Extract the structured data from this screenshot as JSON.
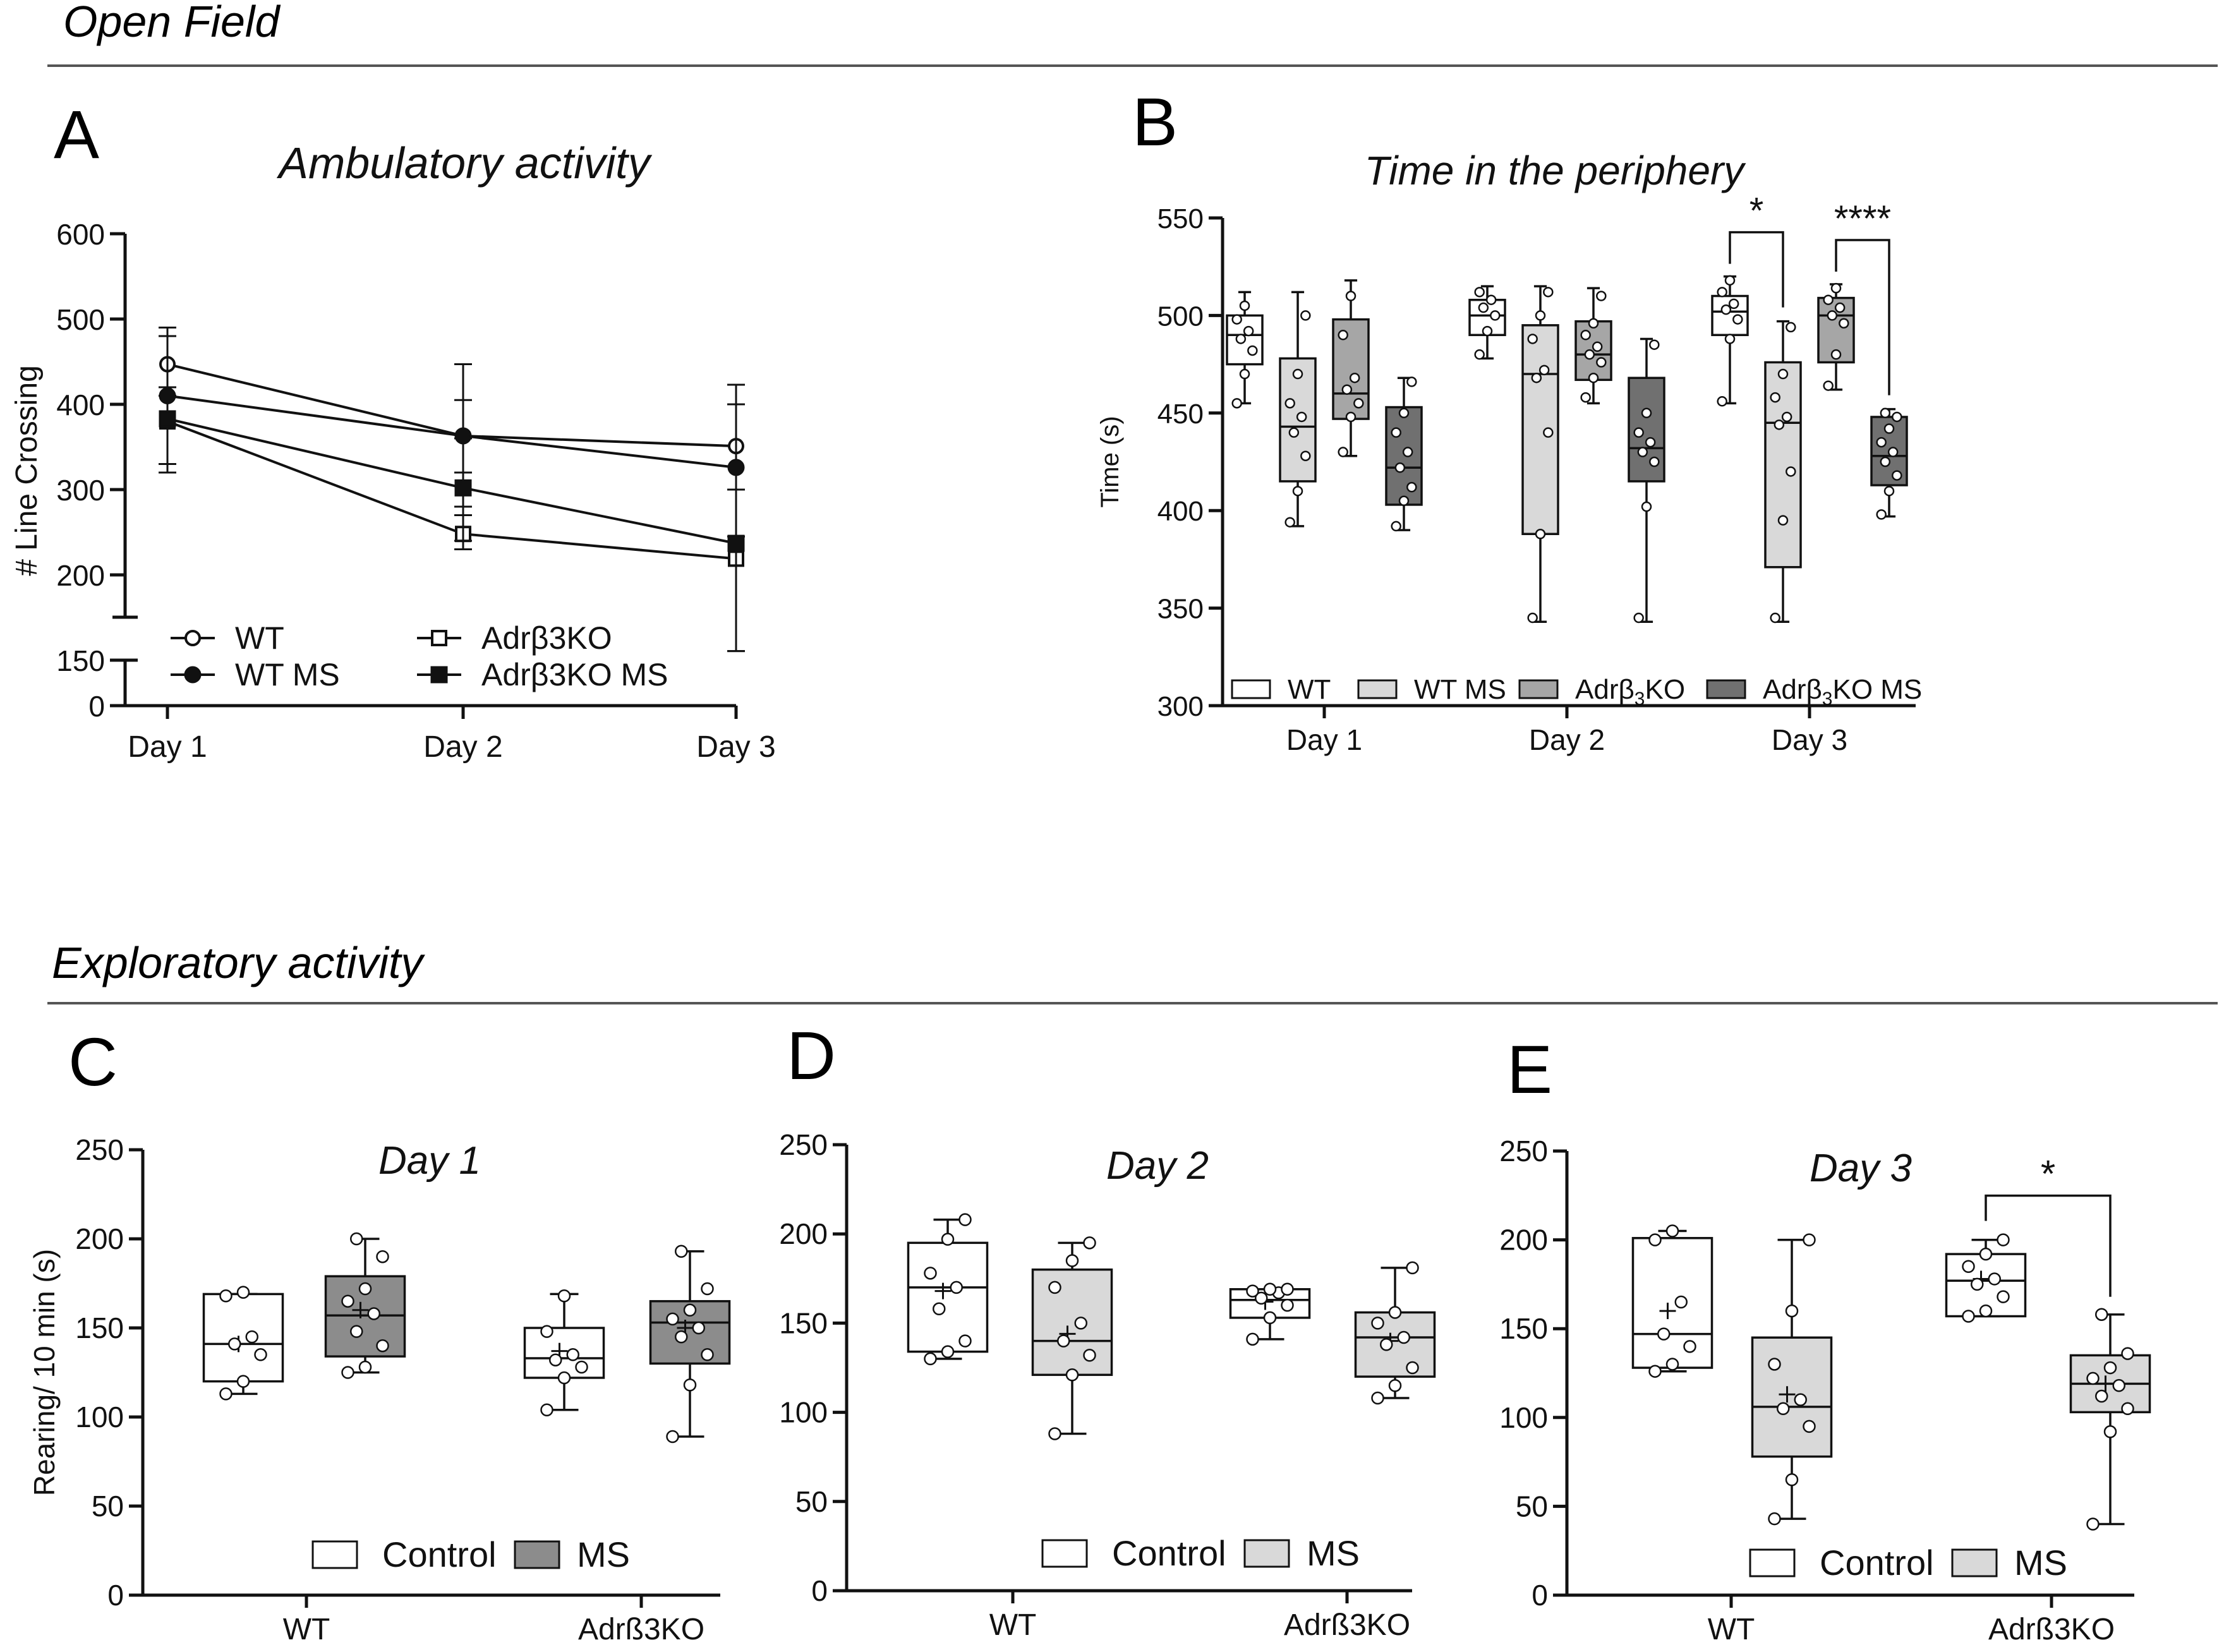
{
  "sections": {
    "open_field": "Open Field",
    "exploratory": "Exploratory activity"
  },
  "panel_letters": [
    "A",
    "B",
    "C",
    "D",
    "E"
  ],
  "colors": {
    "wt": "#ffffff",
    "wt_ms": "#d9d9d9",
    "ko": "#a6a6a6",
    "ko_ms": "#707070",
    "control": "#ffffff",
    "ms_c": "#8c8c8c",
    "ms_light": "#d9d9d9"
  },
  "chart_data": [
    {
      "id": "A",
      "type": "line",
      "title": "Ambulatory activity",
      "ylabel": "# Line Crossing",
      "xlabel": "",
      "categories": [
        "Day 1",
        "Day 2",
        "Day 3"
      ],
      "ylim": [
        0,
        600
      ],
      "yticks": [
        "600",
        "500",
        "400",
        "300",
        "200",
        "150",
        "0"
      ],
      "axis_break": [
        150,
        200
      ],
      "series": [
        {
          "name": "WT",
          "marker": "open-circle",
          "values": [
            447,
            363,
            351
          ],
          "err_hi": [
            490,
            405,
            423
          ],
          "err_lo": [
            410,
            320,
            300
          ]
        },
        {
          "name": "WT MS",
          "marker": "filled-circle",
          "values": [
            410,
            363,
            326
          ],
          "err_hi": [
            490,
            447,
            400
          ],
          "err_lo": [
            330,
            280,
            245
          ]
        },
        {
          "name": "Adrβ3KO",
          "marker": "open-square",
          "values": [
            380,
            248,
            219
          ],
          "err_hi": [
            420,
            270,
            300
          ],
          "err_lo": [
            320,
            230,
            180
          ]
        },
        {
          "name": "Adrβ3KO MS",
          "marker": "filled-square",
          "values": [
            383,
            302,
            237
          ],
          "err_hi": [
            480,
            360,
            300
          ],
          "err_lo": [
            330,
            240,
            180
          ]
        }
      ]
    },
    {
      "id": "B",
      "type": "box",
      "title": "Time in the periphery",
      "ylabel": "Time (s)",
      "categories": [
        "Day 1",
        "Day 2",
        "Day 3"
      ],
      "ylim": [
        300,
        550
      ],
      "yticks": [
        "550",
        "500",
        "450",
        "400",
        "350",
        "300"
      ],
      "series_names": [
        "WT",
        "WT MS",
        "Adrβ3KO",
        "Adrβ3KO MS"
      ],
      "legend": [
        {
          "name": "WT",
          "base": "WT",
          "sub": "",
          "tail": ""
        },
        {
          "name": "WT MS",
          "base": "WT MS",
          "sub": "",
          "tail": ""
        },
        {
          "name": "Adrβ3KO",
          "base": "Adrβ",
          "sub": "3",
          "tail": "KO"
        },
        {
          "name": "Adrβ3KO MS",
          "base": "Adrβ",
          "sub": "3",
          "tail": "KO MS"
        }
      ],
      "groups": [
        [
          {
            "min": 455,
            "q1": 475,
            "med": 490,
            "q3": 500,
            "max": 512,
            "points": [
              455,
              470,
              482,
              488,
              492,
              498,
              505
            ]
          },
          {
            "min": 392,
            "q1": 415,
            "med": 443,
            "q3": 478,
            "max": 512,
            "points": [
              394,
              410,
              428,
              440,
              448,
              455,
              470,
              500
            ]
          },
          {
            "min": 428,
            "q1": 447,
            "med": 460,
            "q3": 498,
            "max": 518,
            "points": [
              430,
              448,
              455,
              462,
              468,
              490,
              510
            ]
          },
          {
            "min": 390,
            "q1": 403,
            "med": 422,
            "q3": 453,
            "max": 468,
            "points": [
              392,
              405,
              412,
              422,
              430,
              440,
              450,
              466
            ]
          }
        ],
        [
          {
            "min": 478,
            "q1": 490,
            "med": 500,
            "q3": 508,
            "max": 515,
            "points": [
              480,
              492,
              500,
              504,
              508,
              512
            ]
          },
          {
            "min": 343,
            "q1": 388,
            "med": 470,
            "q3": 495,
            "max": 515,
            "points": [
              345,
              388,
              440,
              468,
              472,
              488,
              500,
              512
            ]
          },
          {
            "min": 455,
            "q1": 467,
            "med": 480,
            "q3": 497,
            "max": 514,
            "points": [
              458,
              468,
              476,
              480,
              484,
              490,
              496,
              510
            ]
          },
          {
            "min": 343,
            "q1": 415,
            "med": 432,
            "q3": 468,
            "max": 488,
            "points": [
              345,
              402,
              425,
              430,
              435,
              440,
              450,
              485
            ]
          }
        ],
        [
          {
            "min": 455,
            "q1": 490,
            "med": 502,
            "q3": 510,
            "max": 520,
            "points": [
              456,
              488,
              498,
              503,
              506,
              512,
              518
            ]
          },
          {
            "min": 343,
            "q1": 371,
            "med": 445,
            "q3": 476,
            "max": 497,
            "points": [
              345,
              395,
              420,
              444,
              448,
              458,
              470,
              494
            ]
          },
          {
            "min": 462,
            "q1": 476,
            "med": 500,
            "q3": 509,
            "max": 516,
            "points": [
              464,
              480,
              496,
              500,
              504,
              508,
              514
            ]
          },
          {
            "min": 397,
            "q1": 413,
            "med": 428,
            "q3": 448,
            "max": 452,
            "points": [
              398,
              410,
              418,
              425,
              430,
              435,
              442,
              448,
              450
            ]
          }
        ]
      ],
      "significance": [
        {
          "group": 2,
          "from": 0,
          "to": 1,
          "label": "*"
        },
        {
          "group": 2,
          "from": 2,
          "to": 3,
          "label": "****"
        }
      ]
    },
    {
      "id": "C",
      "type": "box",
      "title": "Day 1",
      "ylabel": "Rearing/ 10 min (s)",
      "categories": [
        "WT",
        "Adrß3KO"
      ],
      "ylim": [
        0,
        250
      ],
      "yticks": [
        "250",
        "200",
        "150",
        "100",
        "50",
        "0"
      ],
      "legend": [
        "Control",
        "MS"
      ],
      "groups": [
        [
          {
            "min": 113,
            "q1": 120,
            "med": 141,
            "q3": 169,
            "max": 169,
            "mean": 141,
            "points": [
              113,
              120,
              135,
              141,
              145,
              168,
              170
            ]
          },
          {
            "min": 125,
            "q1": 134,
            "med": 157,
            "q3": 179,
            "max": 200,
            "mean": 160,
            "points": [
              125,
              128,
              140,
              148,
              158,
              165,
              172,
              190,
              200
            ]
          }
        ],
        [
          {
            "min": 104,
            "q1": 122,
            "med": 133,
            "q3": 150,
            "max": 169,
            "mean": 137,
            "points": [
              104,
              122,
              128,
              132,
              135,
              148,
              168
            ]
          },
          {
            "min": 89,
            "q1": 130,
            "med": 153,
            "q3": 165,
            "max": 193,
            "mean": 150,
            "points": [
              89,
              118,
              135,
              145,
              150,
              155,
              160,
              172,
              193
            ]
          }
        ]
      ],
      "significance": []
    },
    {
      "id": "D",
      "type": "box",
      "title": "Day 2",
      "ylabel": "",
      "categories": [
        "WT",
        "Adrß3KO"
      ],
      "ylim": [
        0,
        250
      ],
      "yticks": [
        "250",
        "200",
        "150",
        "100",
        "50",
        "0"
      ],
      "legend": [
        "Control",
        "MS"
      ],
      "groups": [
        [
          {
            "min": 130,
            "q1": 134,
            "med": 170,
            "q3": 195,
            "max": 208,
            "mean": 168,
            "points": [
              130,
              134,
              140,
              158,
              170,
              178,
              197,
              208
            ]
          },
          {
            "min": 88,
            "q1": 121,
            "med": 140,
            "q3": 180,
            "max": 195,
            "mean": 144,
            "points": [
              88,
              121,
              132,
              140,
              150,
              170,
              185,
              195
            ]
          }
        ],
        [
          {
            "min": 141,
            "q1": 153,
            "med": 163,
            "q3": 169,
            "max": 169,
            "mean": 162,
            "points": [
              141,
              153,
              160,
              164,
              167,
              168,
              169,
              169
            ]
          },
          {
            "min": 108,
            "q1": 120,
            "med": 142,
            "q3": 156,
            "max": 181,
            "mean": 140,
            "points": [
              108,
              115,
              125,
              138,
              142,
              150,
              156,
              181
            ]
          }
        ]
      ],
      "significance": []
    },
    {
      "id": "E",
      "type": "box",
      "title": "Day 3",
      "ylabel": "",
      "categories": [
        "WT",
        "Adrß3KO"
      ],
      "ylim": [
        0,
        250
      ],
      "yticks": [
        "250",
        "200",
        "150",
        "100",
        "50",
        "0"
      ],
      "legend": [
        "Control",
        "MS"
      ],
      "groups": [
        [
          {
            "min": 126,
            "q1": 128,
            "med": 147,
            "q3": 201,
            "max": 205,
            "mean": 160,
            "points": [
              126,
              130,
              140,
              147,
              165,
              200,
              205
            ]
          },
          {
            "min": 43,
            "q1": 78,
            "med": 106,
            "q3": 145,
            "max": 200,
            "mean": 113,
            "points": [
              43,
              65,
              95,
              105,
              110,
              130,
              160,
              200
            ]
          }
        ],
        [
          {
            "min": 157,
            "q1": 157,
            "med": 177,
            "q3": 192,
            "max": 200,
            "mean": 178,
            "points": [
              157,
              160,
              168,
              175,
              178,
              185,
              192,
              200
            ]
          },
          {
            "min": 40,
            "q1": 103,
            "med": 119,
            "q3": 135,
            "max": 158,
            "mean": 119,
            "points": [
              40,
              92,
              105,
              112,
              118,
              122,
              128,
              136,
              158
            ]
          }
        ]
      ],
      "significance": [
        {
          "group": 1,
          "from": 0,
          "to": 1,
          "label": "*"
        }
      ]
    }
  ]
}
